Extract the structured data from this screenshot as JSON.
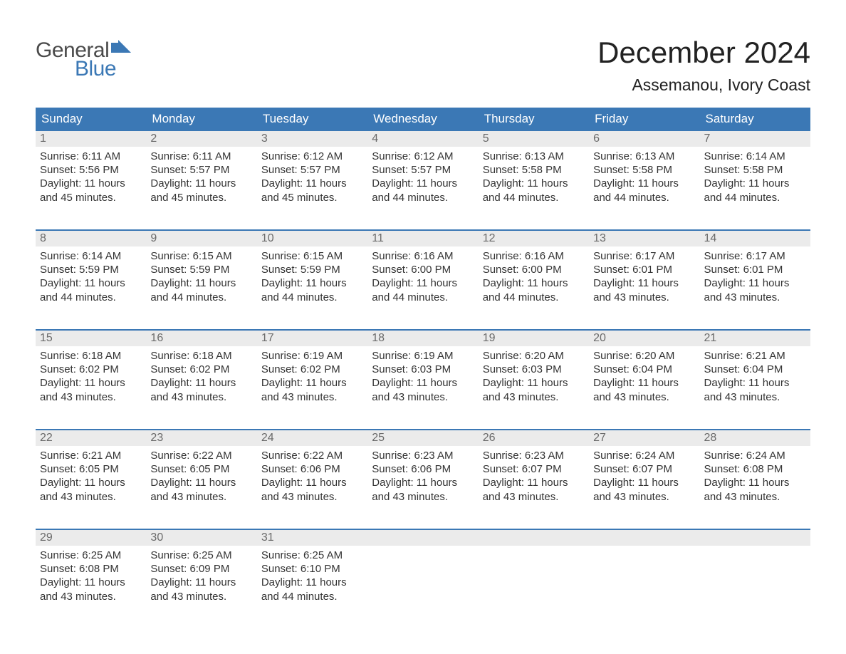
{
  "logo": {
    "top": "General",
    "bottom": "Blue",
    "flag_color": "#3b78b5",
    "text_gray": "#4a4a4a"
  },
  "title": "December 2024",
  "location": "Assemanou, Ivory Coast",
  "colors": {
    "header_bg": "#3b78b5",
    "header_text": "#ffffff",
    "date_strip_bg": "#ebebeb",
    "date_text": "#6a6a6a",
    "body_text": "#333333",
    "week_border": "#3b78b5",
    "page_bg": "#ffffff"
  },
  "fonts": {
    "title_size": 42,
    "location_size": 23,
    "header_size": 17,
    "date_size": 16,
    "body_size": 15,
    "family": "Arial"
  },
  "day_names": [
    "Sunday",
    "Monday",
    "Tuesday",
    "Wednesday",
    "Thursday",
    "Friday",
    "Saturday"
  ],
  "weeks": [
    [
      {
        "date": "1",
        "sunrise": "6:11 AM",
        "sunset": "5:56 PM",
        "daylight": "11 hours and 45 minutes."
      },
      {
        "date": "2",
        "sunrise": "6:11 AM",
        "sunset": "5:57 PM",
        "daylight": "11 hours and 45 minutes."
      },
      {
        "date": "3",
        "sunrise": "6:12 AM",
        "sunset": "5:57 PM",
        "daylight": "11 hours and 45 minutes."
      },
      {
        "date": "4",
        "sunrise": "6:12 AM",
        "sunset": "5:57 PM",
        "daylight": "11 hours and 44 minutes."
      },
      {
        "date": "5",
        "sunrise": "6:13 AM",
        "sunset": "5:58 PM",
        "daylight": "11 hours and 44 minutes."
      },
      {
        "date": "6",
        "sunrise": "6:13 AM",
        "sunset": "5:58 PM",
        "daylight": "11 hours and 44 minutes."
      },
      {
        "date": "7",
        "sunrise": "6:14 AM",
        "sunset": "5:58 PM",
        "daylight": "11 hours and 44 minutes."
      }
    ],
    [
      {
        "date": "8",
        "sunrise": "6:14 AM",
        "sunset": "5:59 PM",
        "daylight": "11 hours and 44 minutes."
      },
      {
        "date": "9",
        "sunrise": "6:15 AM",
        "sunset": "5:59 PM",
        "daylight": "11 hours and 44 minutes."
      },
      {
        "date": "10",
        "sunrise": "6:15 AM",
        "sunset": "5:59 PM",
        "daylight": "11 hours and 44 minutes."
      },
      {
        "date": "11",
        "sunrise": "6:16 AM",
        "sunset": "6:00 PM",
        "daylight": "11 hours and 44 minutes."
      },
      {
        "date": "12",
        "sunrise": "6:16 AM",
        "sunset": "6:00 PM",
        "daylight": "11 hours and 44 minutes."
      },
      {
        "date": "13",
        "sunrise": "6:17 AM",
        "sunset": "6:01 PM",
        "daylight": "11 hours and 43 minutes."
      },
      {
        "date": "14",
        "sunrise": "6:17 AM",
        "sunset": "6:01 PM",
        "daylight": "11 hours and 43 minutes."
      }
    ],
    [
      {
        "date": "15",
        "sunrise": "6:18 AM",
        "sunset": "6:02 PM",
        "daylight": "11 hours and 43 minutes."
      },
      {
        "date": "16",
        "sunrise": "6:18 AM",
        "sunset": "6:02 PM",
        "daylight": "11 hours and 43 minutes."
      },
      {
        "date": "17",
        "sunrise": "6:19 AM",
        "sunset": "6:02 PM",
        "daylight": "11 hours and 43 minutes."
      },
      {
        "date": "18",
        "sunrise": "6:19 AM",
        "sunset": "6:03 PM",
        "daylight": "11 hours and 43 minutes."
      },
      {
        "date": "19",
        "sunrise": "6:20 AM",
        "sunset": "6:03 PM",
        "daylight": "11 hours and 43 minutes."
      },
      {
        "date": "20",
        "sunrise": "6:20 AM",
        "sunset": "6:04 PM",
        "daylight": "11 hours and 43 minutes."
      },
      {
        "date": "21",
        "sunrise": "6:21 AM",
        "sunset": "6:04 PM",
        "daylight": "11 hours and 43 minutes."
      }
    ],
    [
      {
        "date": "22",
        "sunrise": "6:21 AM",
        "sunset": "6:05 PM",
        "daylight": "11 hours and 43 minutes."
      },
      {
        "date": "23",
        "sunrise": "6:22 AM",
        "sunset": "6:05 PM",
        "daylight": "11 hours and 43 minutes."
      },
      {
        "date": "24",
        "sunrise": "6:22 AM",
        "sunset": "6:06 PM",
        "daylight": "11 hours and 43 minutes."
      },
      {
        "date": "25",
        "sunrise": "6:23 AM",
        "sunset": "6:06 PM",
        "daylight": "11 hours and 43 minutes."
      },
      {
        "date": "26",
        "sunrise": "6:23 AM",
        "sunset": "6:07 PM",
        "daylight": "11 hours and 43 minutes."
      },
      {
        "date": "27",
        "sunrise": "6:24 AM",
        "sunset": "6:07 PM",
        "daylight": "11 hours and 43 minutes."
      },
      {
        "date": "28",
        "sunrise": "6:24 AM",
        "sunset": "6:08 PM",
        "daylight": "11 hours and 43 minutes."
      }
    ],
    [
      {
        "date": "29",
        "sunrise": "6:25 AM",
        "sunset": "6:08 PM",
        "daylight": "11 hours and 43 minutes."
      },
      {
        "date": "30",
        "sunrise": "6:25 AM",
        "sunset": "6:09 PM",
        "daylight": "11 hours and 43 minutes."
      },
      {
        "date": "31",
        "sunrise": "6:25 AM",
        "sunset": "6:10 PM",
        "daylight": "11 hours and 44 minutes."
      },
      {
        "empty": true
      },
      {
        "empty": true
      },
      {
        "empty": true
      },
      {
        "empty": true
      }
    ]
  ],
  "labels": {
    "sunrise": "Sunrise: ",
    "sunset": "Sunset: ",
    "daylight": "Daylight: "
  }
}
